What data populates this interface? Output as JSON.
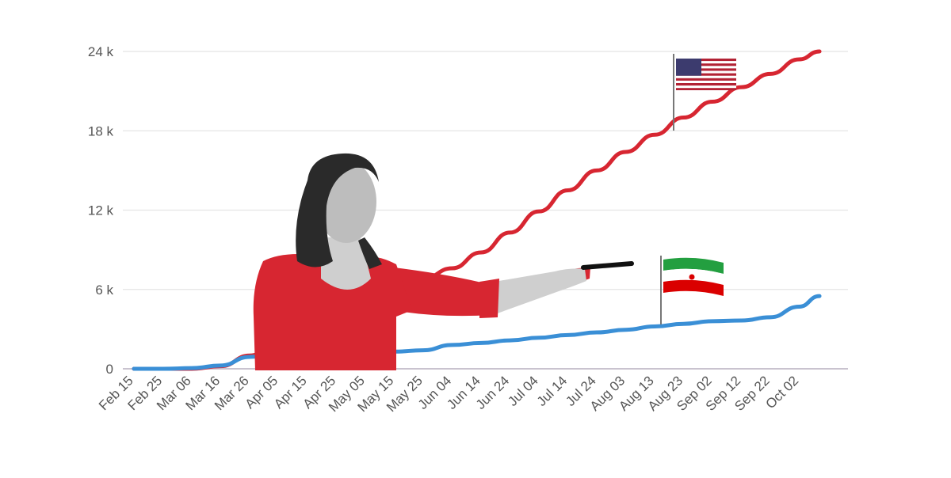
{
  "chart_data": {
    "type": "line",
    "title": "",
    "xlabel": "",
    "ylabel": "",
    "x_ticks": [
      "Feb 15",
      "Feb 25",
      "Mar 06",
      "Mar 16",
      "Mar 26",
      "Apr 05",
      "Apr 15",
      "Apr 25",
      "May 05",
      "May 15",
      "May 25",
      "Jun 04",
      "Jun 14",
      "Jun 24",
      "Jul 04",
      "Jul 14",
      "Jul 24",
      "Aug 03",
      "Aug 13",
      "Aug 23",
      "Sep 02",
      "Sep 12",
      "Sep 22",
      "Oct 02"
    ],
    "y_ticks": [
      "0",
      "6 k",
      "12 k",
      "18 k",
      "24 k"
    ],
    "ylim": [
      0,
      24000
    ],
    "grid": true,
    "series": [
      {
        "color": "#d72631",
        "x": [
          "Feb 15",
          "Feb 25",
          "Mar 06",
          "Mar 16",
          "Mar 26",
          "Apr 05",
          "Apr 15",
          "Apr 25",
          "May 05",
          "May 15",
          "May 25",
          "Jun 04",
          "Jun 14",
          "Jun 24",
          "Jul 04",
          "Jul 14",
          "Jul 24",
          "Aug 03",
          "Aug 13",
          "Aug 23",
          "Sep 02",
          "Sep 12",
          "Sep 22",
          "Oct 02",
          "Oct 09"
        ],
        "values": [
          0,
          0,
          0,
          200,
          1000,
          2000,
          3200,
          4200,
          5200,
          6000,
          6800,
          7600,
          8800,
          10300,
          11900,
          13500,
          15000,
          16400,
          17700,
          19000,
          20200,
          21300,
          22300,
          23400,
          24000
        ]
      },
      {
        "color": "#3a8fd6",
        "x": [
          "Feb 15",
          "Feb 25",
          "Mar 06",
          "Mar 16",
          "Mar 26",
          "Apr 05",
          "Apr 15",
          "Apr 25",
          "May 05",
          "May 15",
          "May 25",
          "Jun 04",
          "Jun 14",
          "Jun 24",
          "Jul 04",
          "Jul 14",
          "Jul 24",
          "Aug 03",
          "Aug 13",
          "Aug 23",
          "Sep 02",
          "Sep 12",
          "Sep 22",
          "Oct 02",
          "Oct 09"
        ],
        "values": [
          0,
          0,
          50,
          250,
          900,
          1100,
          1200,
          1250,
          1250,
          1300,
          1400,
          1800,
          1950,
          2150,
          2350,
          2550,
          2750,
          2950,
          3200,
          3400,
          3600,
          3650,
          3900,
          4700,
          5500
        ]
      }
    ]
  },
  "decorations": {
    "us_flag_icon": "us-flag-icon",
    "iran_flag_icon": "iran-flag-icon",
    "presenter_image": "presenter-photo",
    "accent_red": "#d72631",
    "accent_blue": "#3a8fd6"
  }
}
